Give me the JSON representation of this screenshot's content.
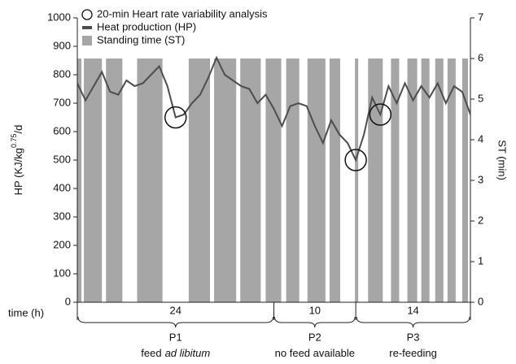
{
  "chart_data": {
    "type": "combo",
    "x_label": "time (h)",
    "y_label": [
      "HP (KJ/kg",
      "0.75",
      "/d"
    ],
    "y2_label": "ST (min)",
    "xlim": [
      0,
      48
    ],
    "ylim": [
      0,
      1000
    ],
    "yticks": [
      0,
      100,
      200,
      300,
      400,
      500,
      600,
      700,
      800,
      900,
      1000
    ],
    "y2lim": [
      0,
      7
    ],
    "y2ticks": [
      0,
      1,
      2,
      3,
      4,
      5,
      6,
      7
    ],
    "series": [
      {
        "name": "20-min Heart rate variability analysis",
        "type": "scatter",
        "marker": "open-circle",
        "color": "#111111",
        "x": [
          12,
          34,
          37
        ],
        "values": [
          650,
          500,
          660
        ]
      },
      {
        "name": "Heat production (HP)",
        "type": "line",
        "color": "#4d4d4d",
        "x": [
          0,
          1,
          2,
          3,
          4,
          5,
          6,
          7,
          8,
          9,
          10,
          11,
          12,
          13,
          14,
          15,
          16,
          17,
          18,
          19,
          20,
          21,
          22,
          23,
          24,
          25,
          26,
          27,
          28,
          29,
          30,
          31,
          32,
          33,
          34,
          35,
          36,
          37,
          38,
          39,
          40,
          41,
          42,
          43,
          44,
          45,
          46,
          47,
          48
        ],
        "values": [
          770,
          710,
          760,
          810,
          740,
          730,
          780,
          760,
          770,
          800,
          830,
          760,
          650,
          660,
          700,
          730,
          790,
          860,
          800,
          780,
          760,
          750,
          700,
          730,
          680,
          620,
          690,
          700,
          690,
          620,
          560,
          640,
          590,
          560,
          500,
          590,
          720,
          660,
          760,
          700,
          770,
          710,
          760,
          720,
          770,
          700,
          760,
          740,
          660
        ]
      },
      {
        "name": "Standing time (ST)",
        "type": "bar",
        "color": "#a6a6a6",
        "axis": "y2",
        "x_start": [
          0,
          0.8,
          3.5,
          7.3,
          13.6,
          16.7,
          19.9,
          23,
          25.5,
          28.1,
          30.8,
          33.9,
          35.5,
          38.3,
          40.3,
          42,
          43.7,
          45.2,
          47
        ],
        "x_end": [
          0.5,
          3,
          5.5,
          10.4,
          16.2,
          19.4,
          22.4,
          24.9,
          27.1,
          30.3,
          32.1,
          34.3,
          37.3,
          39.3,
          41.5,
          43,
          44.7,
          46.2,
          47.7
        ],
        "values": [
          6,
          6,
          6,
          6,
          6,
          6,
          6,
          6,
          6,
          6,
          6,
          6,
          6,
          6,
          6,
          6,
          6,
          6,
          6
        ]
      }
    ],
    "periods": [
      {
        "duration": 24,
        "name": "P1",
        "description": [
          "feed",
          "ad libitum"
        ]
      },
      {
        "duration": 10,
        "name": "P2",
        "description": [
          "no feed available"
        ]
      },
      {
        "duration": 14,
        "name": "P3",
        "description": [
          "re-feeding"
        ]
      }
    ]
  }
}
